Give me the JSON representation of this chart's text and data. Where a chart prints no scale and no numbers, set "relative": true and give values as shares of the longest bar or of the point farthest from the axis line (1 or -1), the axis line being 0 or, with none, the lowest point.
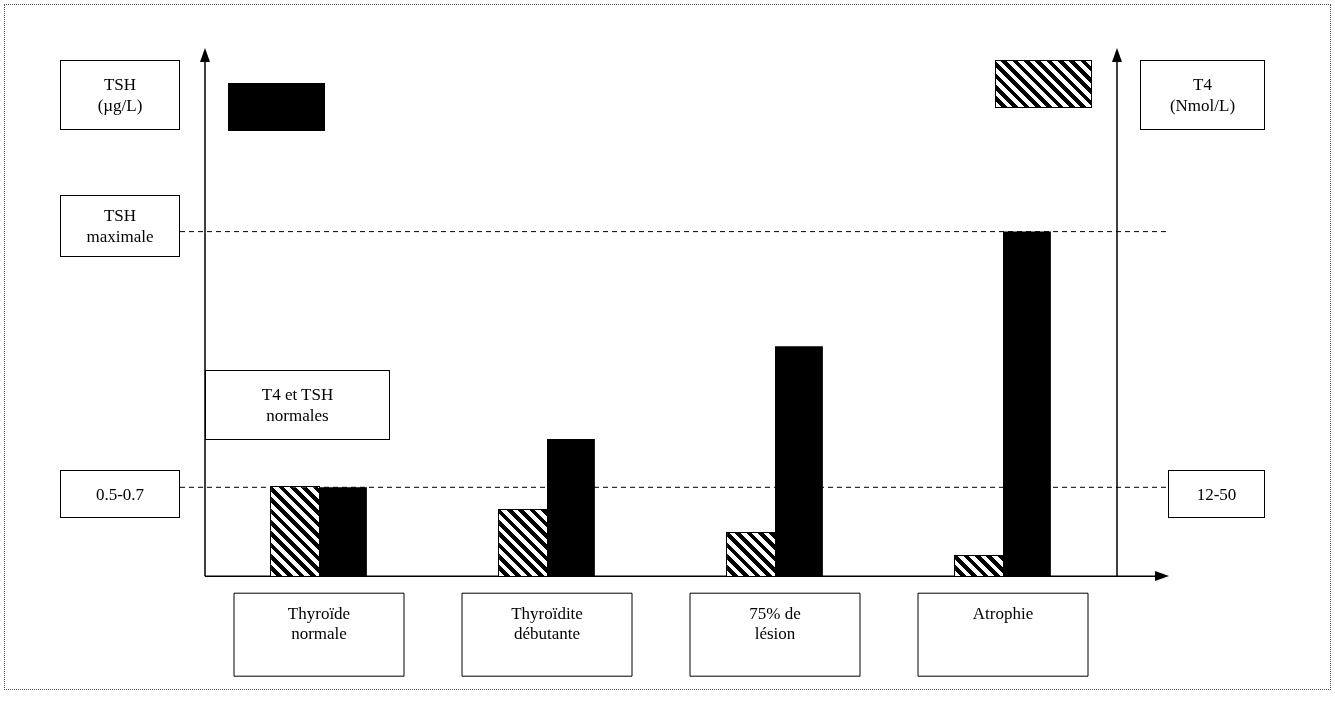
{
  "chart_data": {
    "type": "bar",
    "relative": true,
    "categories": [
      "Thyroïde normale",
      "Thyroïdite débutante",
      "75% de lésion",
      "Atrophie"
    ],
    "series": [
      {
        "color": "#000000",
        "values": [
          0.258,
          0.193,
          0.126,
          0.059
        ]
      },
      {
        "color": "#000000",
        "values": [
          0.258,
          0.398,
          0.667,
          1
        ]
      }
    ],
    "ref_lines": [
      {
        "axis": "y",
        "value": 1,
        "line_style": "dashed"
      },
      {
        "axis": "y",
        "value": 0.258,
        "line_style": "dashed"
      }
    ],
    "annotations": [
      "TSH (µg/L)",
      "T4 (Nmol/L)",
      "TSH maximale",
      "T4 et TSH normales",
      "0.5-0.7",
      "12-50"
    ],
    "grid": false,
    "legend": false
  }
}
